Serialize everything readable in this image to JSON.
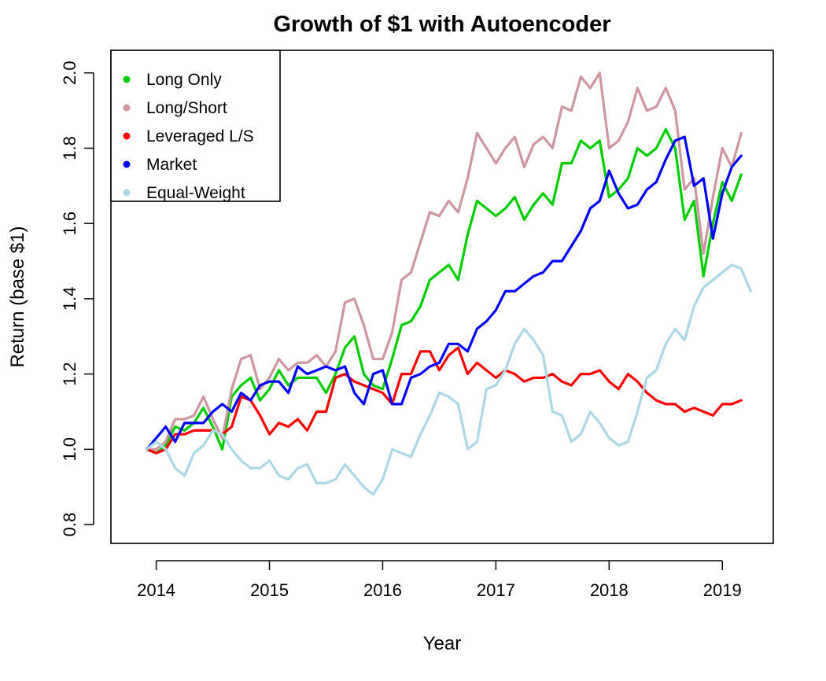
{
  "chart_data": {
    "type": "line",
    "title": "Growth of $1 with Autoencoder",
    "xlabel": "Year",
    "ylabel": "Return (base $1)",
    "xlim": [
      2013.6,
      2019.45
    ],
    "ylim": [
      0.75,
      2.06
    ],
    "x_ticks": [
      2014,
      2015,
      2016,
      2017,
      2018,
      2019
    ],
    "x_tick_labels": [
      "2014",
      "2015",
      "2016",
      "2017",
      "2018",
      "2019"
    ],
    "y_ticks": [
      0.8,
      1.0,
      1.2,
      1.4,
      1.6,
      1.8,
      2.0
    ],
    "y_tick_labels": [
      "0.8",
      "1.0",
      "1.2",
      "1.4",
      "1.6",
      "1.8",
      "2.0"
    ],
    "grid": false,
    "legend_position": "top-left",
    "x_start": 2013.917,
    "x_step": 0.08333,
    "series": [
      {
        "name": "Long Only",
        "color": "#00cc00",
        "values": [
          1.0,
          0.99,
          1.01,
          1.06,
          1.05,
          1.07,
          1.11,
          1.06,
          1.0,
          1.14,
          1.17,
          1.19,
          1.13,
          1.16,
          1.21,
          1.17,
          1.19,
          1.19,
          1.19,
          1.15,
          1.2,
          1.27,
          1.3,
          1.2,
          1.17,
          1.16,
          1.24,
          1.33,
          1.34,
          1.38,
          1.45,
          1.47,
          1.49,
          1.45,
          1.57,
          1.66,
          1.64,
          1.62,
          1.64,
          1.67,
          1.61,
          1.65,
          1.68,
          1.65,
          1.76,
          1.76,
          1.82,
          1.8,
          1.82,
          1.67,
          1.69,
          1.72,
          1.8,
          1.78,
          1.8,
          1.85,
          1.8,
          1.61,
          1.66,
          1.46,
          1.6,
          1.71,
          1.66,
          1.73
        ]
      },
      {
        "name": "Long/Short",
        "color": "#cd96a0",
        "values": [
          1.0,
          1.0,
          1.02,
          1.08,
          1.08,
          1.09,
          1.14,
          1.08,
          1.03,
          1.16,
          1.24,
          1.25,
          1.16,
          1.19,
          1.24,
          1.21,
          1.23,
          1.23,
          1.25,
          1.22,
          1.26,
          1.39,
          1.4,
          1.33,
          1.24,
          1.24,
          1.31,
          1.45,
          1.47,
          1.55,
          1.63,
          1.62,
          1.66,
          1.63,
          1.72,
          1.84,
          1.8,
          1.76,
          1.8,
          1.83,
          1.75,
          1.81,
          1.83,
          1.8,
          1.91,
          1.9,
          1.99,
          1.96,
          2.0,
          1.8,
          1.82,
          1.87,
          1.96,
          1.9,
          1.91,
          1.96,
          1.9,
          1.69,
          1.72,
          1.52,
          1.67,
          1.8,
          1.75,
          1.84
        ]
      },
      {
        "name": "Leveraged L/S",
        "color": "#ff0000",
        "values": [
          1.0,
          0.99,
          1.0,
          1.04,
          1.04,
          1.05,
          1.05,
          1.05,
          1.04,
          1.06,
          1.14,
          1.13,
          1.09,
          1.04,
          1.07,
          1.06,
          1.08,
          1.05,
          1.1,
          1.1,
          1.19,
          1.2,
          1.18,
          1.17,
          1.16,
          1.15,
          1.12,
          1.2,
          1.2,
          1.26,
          1.26,
          1.21,
          1.25,
          1.27,
          1.2,
          1.23,
          1.21,
          1.19,
          1.21,
          1.2,
          1.18,
          1.19,
          1.19,
          1.2,
          1.18,
          1.17,
          1.2,
          1.2,
          1.21,
          1.18,
          1.16,
          1.2,
          1.18,
          1.15,
          1.13,
          1.12,
          1.12,
          1.1,
          1.11,
          1.1,
          1.09,
          1.12,
          1.12,
          1.13
        ]
      },
      {
        "name": "Market",
        "color": "#0000ff",
        "values": [
          1.0,
          1.03,
          1.06,
          1.02,
          1.07,
          1.07,
          1.07,
          1.1,
          1.12,
          1.1,
          1.15,
          1.13,
          1.17,
          1.18,
          1.18,
          1.15,
          1.22,
          1.2,
          1.21,
          1.22,
          1.21,
          1.22,
          1.15,
          1.12,
          1.2,
          1.21,
          1.12,
          1.12,
          1.19,
          1.2,
          1.22,
          1.23,
          1.28,
          1.28,
          1.26,
          1.32,
          1.34,
          1.37,
          1.42,
          1.42,
          1.44,
          1.46,
          1.47,
          1.5,
          1.5,
          1.54,
          1.58,
          1.64,
          1.66,
          1.74,
          1.68,
          1.64,
          1.65,
          1.69,
          1.71,
          1.77,
          1.82,
          1.83,
          1.7,
          1.72,
          1.56,
          1.68,
          1.75,
          1.78
        ]
      },
      {
        "name": "Equal-Weight",
        "color": "#add8e6",
        "values": [
          1.0,
          1.02,
          1.0,
          0.95,
          0.93,
          0.99,
          1.01,
          1.05,
          1.04,
          1.0,
          0.97,
          0.95,
          0.95,
          0.97,
          0.93,
          0.92,
          0.95,
          0.96,
          0.91,
          0.91,
          0.92,
          0.96,
          0.93,
          0.9,
          0.88,
          0.92,
          1.0,
          0.99,
          0.98,
          1.04,
          1.09,
          1.15,
          1.14,
          1.12,
          1.0,
          1.02,
          1.16,
          1.17,
          1.21,
          1.28,
          1.32,
          1.29,
          1.25,
          1.1,
          1.09,
          1.02,
          1.04,
          1.1,
          1.07,
          1.03,
          1.01,
          1.02,
          1.1,
          1.19,
          1.21,
          1.28,
          1.32,
          1.29,
          1.38,
          1.43,
          1.45,
          1.47,
          1.49,
          1.48,
          1.42
        ]
      }
    ]
  }
}
